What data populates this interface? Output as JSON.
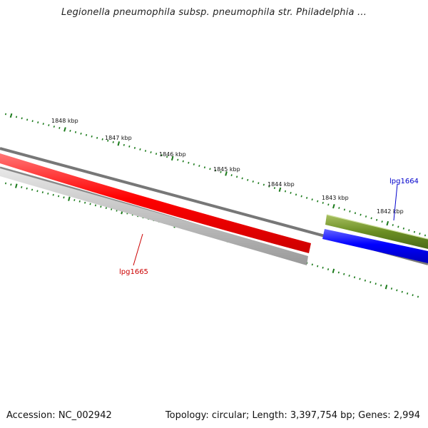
{
  "title": "Legionella pneumophila subsp. pneumophila str. Philadelphia ...",
  "footer": {
    "accession": "Accession: NC_002942",
    "info": "Topology: circular; Length: 3,397,754 bp; Genes: 2,994"
  },
  "ticks": [
    "1848 kbp",
    "1847 kbp",
    "1846 kbp",
    "1845 kbp",
    "1844 kbp",
    "1843 kbp",
    "1842 kbp"
  ],
  "genes": [
    {
      "name": "lpg1665",
      "color": "#cc0000",
      "feature_color": "#ff0000"
    },
    {
      "name": "lpg1664",
      "color": "#0000cc",
      "feature_color": "#0000ff"
    }
  ],
  "colors": {
    "backbone": "#777777",
    "gc_track": "#c0c0c0",
    "orf_track": "#6b8e23",
    "tick": "#1a7a1a"
  }
}
